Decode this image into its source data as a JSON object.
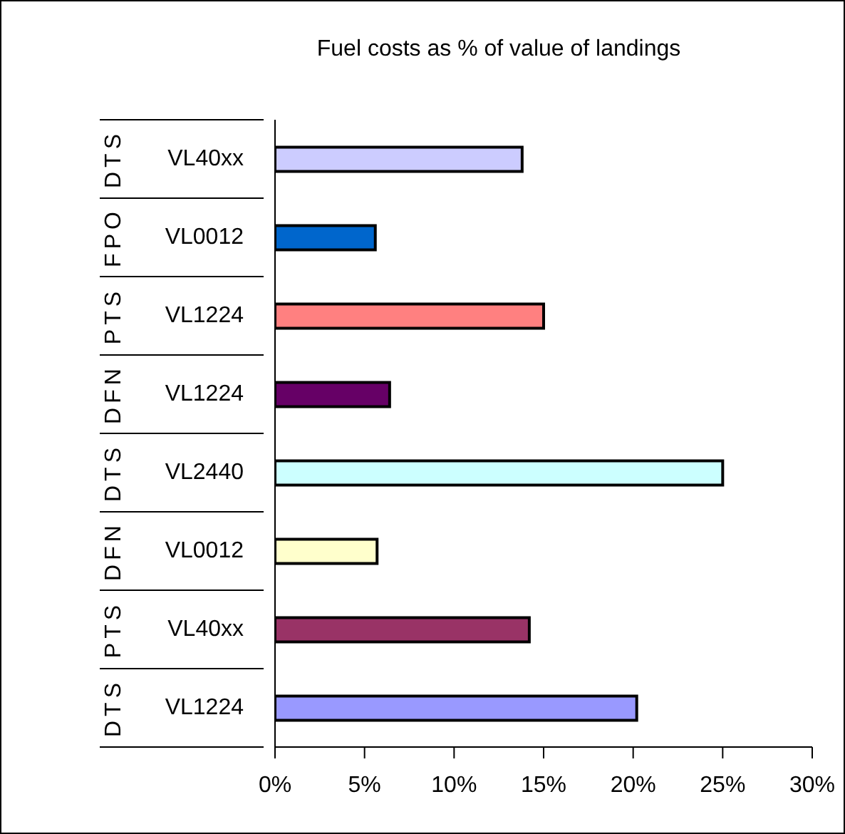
{
  "chart_data": {
    "type": "bar",
    "orientation": "horizontal",
    "title": "Fuel costs as % of value of landings",
    "categories": [
      "VL40xx DTS",
      "VL0012 FPO",
      "VL1224 PTS",
      "VL1224 DFN",
      "VL2440 DTS",
      "VL0012 DFN",
      "VL40xx PTS",
      "VL1224 DTS"
    ],
    "values": [
      13.8,
      5.6,
      15.0,
      6.4,
      25.0,
      5.7,
      14.2,
      20.2
    ],
    "colors": [
      "#ccccff",
      "#0066cc",
      "#ff8080",
      "#660066",
      "#ccffff",
      "#ffffcc",
      "#993366",
      "#9999ff"
    ],
    "xlim": [
      0,
      30
    ],
    "xticks": [
      {
        "value": 0,
        "label": "0%"
      },
      {
        "value": 5,
        "label": "5%"
      },
      {
        "value": 10,
        "label": "10%"
      },
      {
        "value": 15,
        "label": "15%"
      },
      {
        "value": 20,
        "label": "20%"
      },
      {
        "value": 25,
        "label": "25%"
      },
      {
        "value": 30,
        "label": "30%"
      }
    ],
    "grid": false,
    "legend": false
  }
}
